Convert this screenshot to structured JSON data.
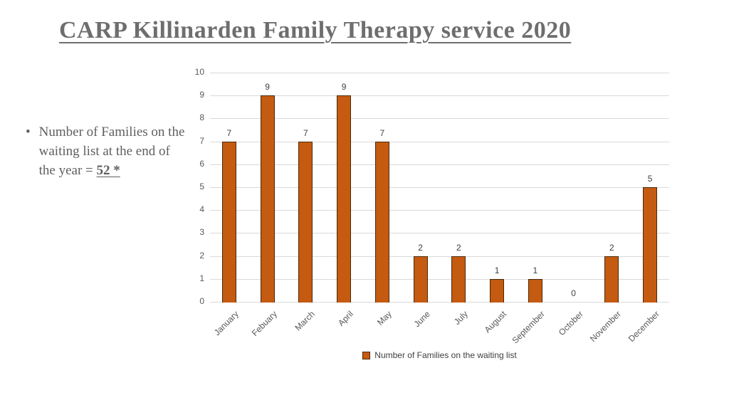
{
  "slide": {
    "title": "CARP Killinarden Family Therapy service 2020",
    "bullet": {
      "marker": "•",
      "prefix": "Number of Families on the waiting list at the end of  the year = ",
      "highlight": "52 *"
    }
  },
  "chart_data": {
    "type": "bar",
    "title": "",
    "categories": [
      "January",
      "Febuary",
      "March",
      "April",
      "May",
      "June",
      "July",
      "August",
      "September",
      "October",
      "November",
      "December"
    ],
    "values": [
      7,
      9,
      7,
      9,
      7,
      2,
      2,
      1,
      1,
      0,
      2,
      5
    ],
    "series": [
      {
        "name": "Number of Families on the waiting list",
        "values": [
          7,
          9,
          7,
          9,
          7,
          2,
          2,
          1,
          1,
          0,
          2,
          5
        ]
      }
    ],
    "xlabel": "",
    "ylabel": "",
    "ylim": [
      0,
      10
    ],
    "yticks": [
      0,
      1,
      2,
      3,
      4,
      5,
      6,
      7,
      8,
      9,
      10
    ],
    "grid": true,
    "data_labels": true,
    "legend": {
      "label": "Number of Families on the waiting list",
      "position": "bottom"
    },
    "colors": {
      "bar_fill": "#c55a11",
      "bar_border": "#4a2a08",
      "gridline": "#d9d9d9",
      "axis_text": "#595959",
      "data_label_text": "#404040"
    }
  }
}
